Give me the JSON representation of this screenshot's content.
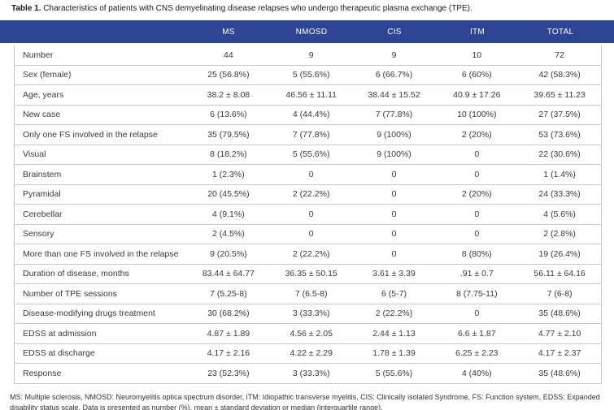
{
  "caption": {
    "label": "Table 1.",
    "text": "Characteristics of patients with CNS demyelinating disease relapses who undergo therapeutic plasma exchange (TPE)."
  },
  "table": {
    "columns": [
      "",
      "MS",
      "NMOSD",
      "CIS",
      "ITM",
      "TOTAL"
    ],
    "rows": [
      {
        "label": "Number",
        "values": [
          "44",
          "9",
          "9",
          "10",
          "72"
        ]
      },
      {
        "label": "Sex (female)",
        "values": [
          "25 (56.8%)",
          "5 (55.6%)",
          "6 (66.7%)",
          "6 (60%)",
          "42 (58.3%)"
        ]
      },
      {
        "label": "Age, years",
        "values": [
          "38.2 ± 8.08",
          "46.56 ± 11.11",
          "38.44 ± 15.52",
          "40.9 ± 17.26",
          "39.65 ± 11.23"
        ]
      },
      {
        "label": "New case",
        "values": [
          "6 (13.6%)",
          "4 (44.4%)",
          "7 (77.8%)",
          "10 (100%)",
          "27 (37.5%)"
        ]
      },
      {
        "label": "Only one FS involved in the relapse",
        "values": [
          "35 (79.5%)",
          "7 (77.8%)",
          "9 (100%)",
          "2 (20%)",
          "53 (73.6%)"
        ]
      },
      {
        "label": "Visual",
        "values": [
          "8 (18.2%)",
          "5 (55.6%)",
          "9 (100%)",
          "0",
          "22 (30.6%)"
        ]
      },
      {
        "label": "Brainstem",
        "values": [
          "1 (2.3%)",
          "0",
          "0",
          "0",
          "1 (1.4%)"
        ]
      },
      {
        "label": "Pyramidal",
        "values": [
          "20 (45.5%)",
          "2 (22.2%)",
          "0",
          "2 (20%)",
          "24 (33.3%)"
        ]
      },
      {
        "label": "Cerebellar",
        "values": [
          "4 (9.1%)",
          "0",
          "0",
          "0",
          "4 (5.6%)"
        ]
      },
      {
        "label": "Sensory",
        "values": [
          "2 (4.5%)",
          "0",
          "0",
          "0",
          "2 (2.8%)"
        ]
      },
      {
        "label": "More than one FS involved in the relapse",
        "values": [
          "9 (20.5%)",
          "2 (22.2%)",
          "0",
          "8 (80%)",
          "19 (26.4%)"
        ]
      },
      {
        "label": "Duration of disease, months",
        "values": [
          "83.44 ± 64.77",
          "36.35 ± 50.15",
          "3.61 ± 3.39",
          ".91 ± 0.7",
          "56.11 ± 64.16"
        ]
      },
      {
        "label": "Number of TPE sessions",
        "values": [
          "7 (5.25-8)",
          "7 (6.5-8)",
          "6 (5-7)",
          "8 (7.75-11)",
          "7 (6-8)"
        ]
      },
      {
        "label": "Disease-modifying drugs treatment",
        "values": [
          "30 (68.2%)",
          "3 (33.3%)",
          "2 (22.2%)",
          "0",
          "35 (48.6%)"
        ]
      },
      {
        "label": "EDSS at admission",
        "values": [
          "4.87 ± 1.89",
          "4.56 ± 2.05",
          "2.44 ± 1.13",
          "6.6 ± 1.87",
          "4.77 ± 2.10"
        ]
      },
      {
        "label": "EDSS at discharge",
        "values": [
          "4.17 ± 2.16",
          "4.22 ± 2.29",
          "1.78 ± 1.39",
          "6.25 ± 2.23",
          "4.17 ± 2.37"
        ]
      },
      {
        "label": "Response",
        "values": [
          "23 (52.3%)",
          "3 (33.3%)",
          "5 (55.6%)",
          "4 (40%)",
          "35 (48.6%)"
        ]
      }
    ]
  },
  "footnote": {
    "text": "MS: Multiple sclerosis, NMOSD: Neuromyelitis optica spectrum disorder, iTM: Idiopathic transverse myelitis, CIS: Clinically isolated Syndrome, FS: Function system, EDSS: Expanded disability status scale. Data is presented as number (%), mean ± standard deviation or median (interquartile range)."
  },
  "colors": {
    "header_bg": "#2e4594",
    "header_text": "#ffffff",
    "border_color": "#c8c8c8",
    "body_text": "#3a3a3a",
    "title_text": "#1a1a1a",
    "footnote_text": "#333333",
    "page_bg": "#ffffff"
  }
}
